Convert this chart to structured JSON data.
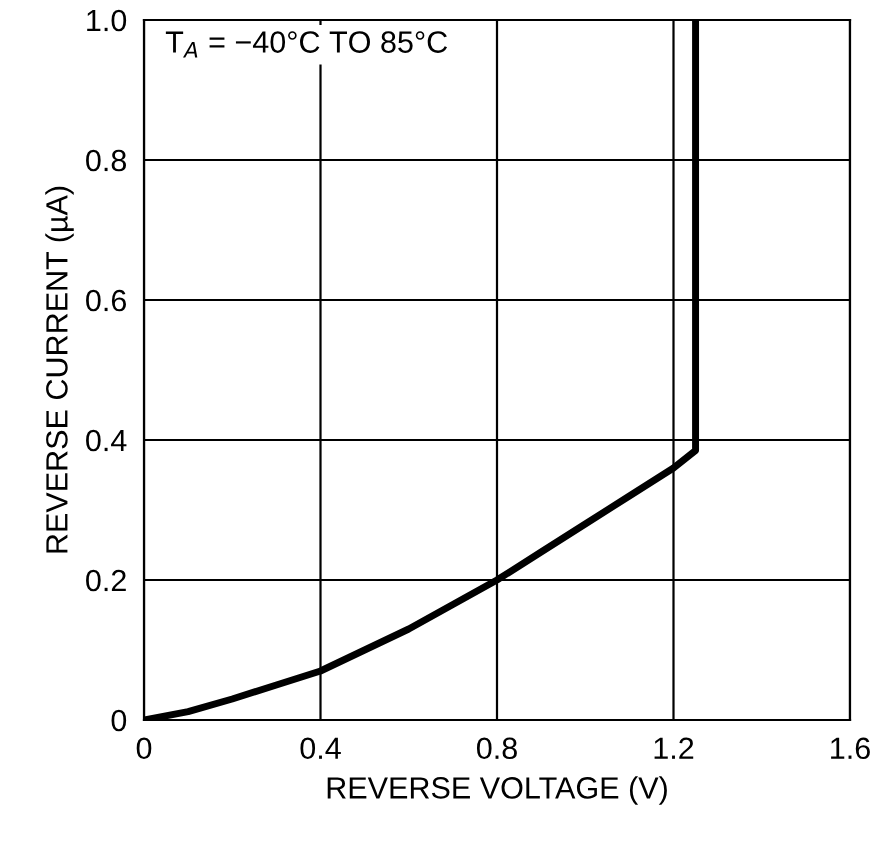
{
  "chart_data": {
    "type": "line",
    "xlabel": "REVERSE VOLTAGE (V)",
    "ylabel": "REVERSE CURRENT (µA)",
    "annotations": [
      "T$_{A}$ = −40°C TO 85°C"
    ],
    "series": [
      {
        "color": "#000000",
        "x": [
          0,
          0.1,
          0.2,
          0.3,
          0.4,
          0.5,
          0.6,
          0.7,
          0.8,
          0.9,
          1.0,
          1.1,
          1.2,
          1.25,
          1.25
        ],
        "values": [
          0,
          0.012,
          0.03,
          0.05,
          0.07,
          0.1,
          0.13,
          0.165,
          0.2,
          0.24,
          0.28,
          0.32,
          0.36,
          0.385,
          1.0
        ]
      }
    ],
    "xlim": [
      0,
      1.6
    ],
    "xticks": [
      0,
      0.4,
      0.8,
      1.2,
      1.6
    ],
    "ylim": [
      0,
      1.0
    ],
    "yticks": [
      0,
      0.2,
      0.4,
      0.6,
      0.8,
      {
        "value": 1.0,
        "label": "1.0"
      }
    ],
    "grid": true,
    "marker": "none",
    "line_style": "solid"
  }
}
